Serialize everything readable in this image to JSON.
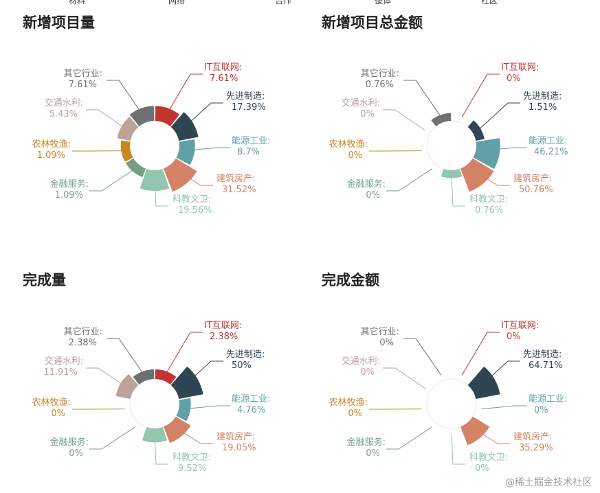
{
  "topbar": [
    "材料",
    "网络",
    "合作",
    "整体",
    "社区"
  ],
  "colors": {
    "IT互联网": "#c23531",
    "先进制造": "#2f4554",
    "能源工业": "#61a0a8",
    "建筑房产": "#d48265",
    "科教文卫": "#91c7ae",
    "金融服务": "#749f83",
    "农林牧渔": "#ca8622",
    "交通水利": "#bda29a",
    "其它行业": "#6e7074"
  },
  "chart_data": [
    {
      "type": "pie",
      "title": "新增项目量",
      "categories": [
        "IT互联网",
        "先进制造",
        "能源工业",
        "建筑房产",
        "科教文卫",
        "金融服务",
        "农林牧渔",
        "交通水利",
        "其它行业"
      ],
      "values": [
        7.61,
        17.39,
        8.7,
        31.52,
        19.56,
        1.09,
        1.09,
        5.43,
        7.61
      ],
      "labels": [
        "7.61%",
        "17.39%",
        "8.7%",
        "31.52%",
        "19.56%",
        "1.09%",
        "1.09%",
        "5.43%",
        "7.61%"
      ]
    },
    {
      "type": "pie",
      "title": "新增项目总金额",
      "categories": [
        "IT互联网",
        "先进制造",
        "能源工业",
        "建筑房产",
        "科教文卫",
        "金融服务",
        "农林牧渔",
        "交通水利",
        "其它行业"
      ],
      "values": [
        0,
        1.51,
        46.21,
        50.76,
        0.76,
        0,
        0,
        0,
        0.76
      ],
      "labels": [
        "0%",
        "1.51%",
        "46.21%",
        "50.76%",
        "0.76%",
        "0%",
        "0%",
        "0%",
        "0.76%"
      ]
    },
    {
      "type": "pie",
      "title": "完成量",
      "categories": [
        "IT互联网",
        "先进制造",
        "能源工业",
        "建筑房产",
        "科教文卫",
        "金融服务",
        "农林牧渔",
        "交通水利",
        "其它行业"
      ],
      "values": [
        2.38,
        50,
        4.76,
        19.05,
        9.52,
        0,
        0,
        11.91,
        2.38
      ],
      "labels": [
        "2.38%",
        "50%",
        "4.76%",
        "19.05%",
        "9.52%",
        "0%",
        "0%",
        "11.91%",
        "2.38%"
      ]
    },
    {
      "type": "pie",
      "title": "完成金额",
      "categories": [
        "IT互联网",
        "先进制造",
        "能源工业",
        "建筑房产",
        "科教文卫",
        "金融服务",
        "农林牧渔",
        "交通水利",
        "其它行业"
      ],
      "values": [
        0,
        64.71,
        0,
        35.29,
        0,
        0,
        0,
        0,
        0
      ],
      "labels": [
        "0%",
        "64.71%",
        "0%",
        "35.29%",
        "0%",
        "0%",
        "0%",
        "0%",
        "0%"
      ]
    }
  ],
  "watermark": "@稀土掘金技术社区"
}
